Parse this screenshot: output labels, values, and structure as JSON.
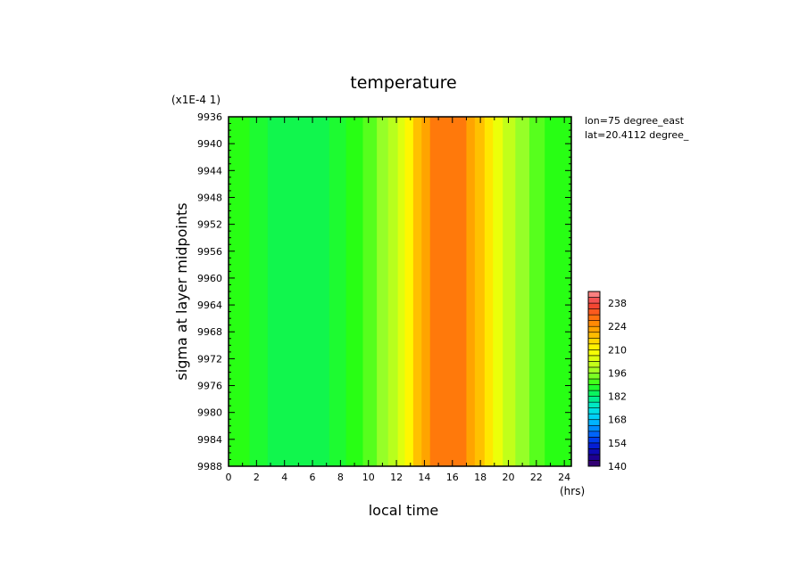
{
  "chart_data": {
    "type": "heatmap",
    "title": "temperature",
    "xlabel": "local time",
    "ylabel": "sigma at layer midpoints",
    "x_units": "(hrs)",
    "y_scale_note": "(x1E-4 1)",
    "info": [
      "lon=75 degree_east",
      "lat=20.4112 degree_"
    ],
    "xlim": [
      0,
      24.5
    ],
    "ylim": [
      9936,
      9988
    ],
    "x_ticks": [
      "0",
      "2",
      "4",
      "6",
      "8",
      "10",
      "12",
      "14",
      "16",
      "18",
      "20",
      "22",
      "24"
    ],
    "y_ticks": [
      "9936",
      "9940",
      "9944",
      "9948",
      "9952",
      "9956",
      "9960",
      "9964",
      "9968",
      "9972",
      "9976",
      "9980",
      "9984",
      "9988"
    ],
    "colorbar": {
      "min": 140,
      "max": 245,
      "step": 3.5,
      "labels": [
        "140",
        "154",
        "168",
        "182",
        "196",
        "210",
        "224",
        "238"
      ]
    },
    "columns": [
      {
        "x0": 0,
        "x1": 1.5,
        "value": 189
      },
      {
        "x0": 1.5,
        "x1": 2.8,
        "value": 187
      },
      {
        "x0": 2.8,
        "x1": 7.2,
        "value": 185
      },
      {
        "x0": 7.2,
        "x1": 8.4,
        "value": 187
      },
      {
        "x0": 8.4,
        "x1": 9.6,
        "value": 189
      },
      {
        "x0": 9.6,
        "x1": 10.6,
        "value": 192
      },
      {
        "x0": 10.6,
        "x1": 11.4,
        "value": 196
      },
      {
        "x0": 11.4,
        "x1": 12.1,
        "value": 200
      },
      {
        "x0": 12.1,
        "x1": 12.6,
        "value": 205
      },
      {
        "x0": 12.6,
        "x1": 13.2,
        "value": 211
      },
      {
        "x0": 13.2,
        "x1": 13.8,
        "value": 218
      },
      {
        "x0": 13.8,
        "x1": 14.4,
        "value": 222
      },
      {
        "x0": 14.4,
        "x1": 17.0,
        "value": 228
      },
      {
        "x0": 17.0,
        "x1": 17.6,
        "value": 222
      },
      {
        "x0": 17.6,
        "x1": 18.3,
        "value": 218
      },
      {
        "x0": 18.3,
        "x1": 18.9,
        "value": 213
      },
      {
        "x0": 18.9,
        "x1": 19.6,
        "value": 207
      },
      {
        "x0": 19.6,
        "x1": 20.5,
        "value": 201
      },
      {
        "x0": 20.5,
        "x1": 21.5,
        "value": 196
      },
      {
        "x0": 21.5,
        "x1": 22.6,
        "value": 192
      },
      {
        "x0": 22.6,
        "x1": 24.5,
        "value": 189
      }
    ]
  }
}
